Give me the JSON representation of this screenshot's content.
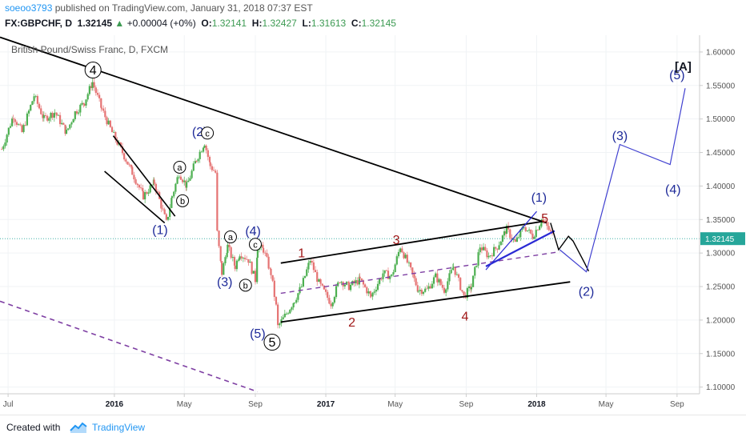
{
  "header": {
    "author": "soeoo3793",
    "published_text": " published on TradingView.com, January 31, 2018 07:37 EST",
    "symbol_line": "FX:GBPCHF, D",
    "last_price": "1.32145",
    "change": "+0.00004 (+0%)",
    "o_label": "O:",
    "o_val": "1.32141",
    "h_label": "H:",
    "h_val": "1.32427",
    "l_label": "L:",
    "l_val": "1.31613",
    "c_label": "C:",
    "c_val": "1.32145"
  },
  "footer": {
    "created_with": "Created with",
    "brand": "TradingView"
  },
  "chart_data": {
    "type": "candlestick",
    "title": "British Pound/Swiss Franc, D, FXCM",
    "annotation_title": "[A]",
    "last_price_label": "1.32145",
    "last_price": 1.32145,
    "ylim": [
      1.09,
      1.625
    ],
    "y_ticks": [
      {
        "value": 1.6,
        "label": "1.60000"
      },
      {
        "value": 1.55,
        "label": "1.55000"
      },
      {
        "value": 1.5,
        "label": "1.50000"
      },
      {
        "value": 1.45,
        "label": "1.45000"
      },
      {
        "value": 1.4,
        "label": "1.40000"
      },
      {
        "value": 1.35,
        "label": "1.35000"
      },
      {
        "value": 1.3,
        "label": "1.30000"
      },
      {
        "value": 1.25,
        "label": "1.25000"
      },
      {
        "value": 1.2,
        "label": "1.20000"
      },
      {
        "value": 1.15,
        "label": "1.15000"
      },
      {
        "value": 1.1,
        "label": "1.10000"
      }
    ],
    "x_range": [
      "2015-06-17",
      "2018-10-10"
    ],
    "x_ticks": [
      {
        "date": "2015-07-01",
        "label": "Jul",
        "bold": false
      },
      {
        "date": "2016-01-01",
        "label": "2016",
        "bold": true
      },
      {
        "date": "2016-05-01",
        "label": "May",
        "bold": false
      },
      {
        "date": "2016-09-01",
        "label": "Sep",
        "bold": false
      },
      {
        "date": "2017-01-01",
        "label": "2017",
        "bold": true
      },
      {
        "date": "2017-05-01",
        "label": "May",
        "bold": false
      },
      {
        "date": "2017-09-01",
        "label": "Sep",
        "bold": false
      },
      {
        "date": "2018-01-01",
        "label": "2018",
        "bold": true
      },
      {
        "date": "2018-05-01",
        "label": "May",
        "bold": false
      },
      {
        "date": "2018-09-01",
        "label": "Sep",
        "bold": false
      }
    ],
    "price_path": [
      [
        "2015-06-20",
        1.455
      ],
      [
        "2015-07-10",
        1.505
      ],
      [
        "2015-07-25",
        1.48
      ],
      [
        "2015-08-15",
        1.535
      ],
      [
        "2015-09-01",
        1.5
      ],
      [
        "2015-09-20",
        1.51
      ],
      [
        "2015-10-10",
        1.48
      ],
      [
        "2015-10-25",
        1.51
      ],
      [
        "2015-11-10",
        1.525
      ],
      [
        "2015-11-24",
        1.555
      ],
      [
        "2015-12-10",
        1.515
      ],
      [
        "2015-12-28",
        1.48
      ],
      [
        "2016-01-15",
        1.45
      ],
      [
        "2016-02-01",
        1.42
      ],
      [
        "2016-02-20",
        1.385
      ],
      [
        "2016-03-10",
        1.405
      ],
      [
        "2016-03-31",
        1.345
      ],
      [
        "2016-04-10",
        1.385
      ],
      [
        "2016-04-22",
        1.42
      ],
      [
        "2016-05-05",
        1.4
      ],
      [
        "2016-05-22",
        1.44
      ],
      [
        "2016-06-05",
        1.465
      ],
      [
        "2016-06-15",
        1.43
      ],
      [
        "2016-06-24",
        1.42
      ],
      [
        "2016-06-27",
        1.33
      ],
      [
        "2016-07-05",
        1.27
      ],
      [
        "2016-07-15",
        1.31
      ],
      [
        "2016-07-28",
        1.28
      ],
      [
        "2016-08-05",
        1.3
      ],
      [
        "2016-08-20",
        1.29
      ],
      [
        "2016-09-01",
        1.26
      ],
      [
        "2016-09-05",
        1.31
      ],
      [
        "2016-09-15",
        1.305
      ],
      [
        "2016-09-28",
        1.27
      ],
      [
        "2016-10-07",
        1.22
      ],
      [
        "2016-10-10",
        1.19
      ],
      [
        "2016-10-25",
        1.21
      ],
      [
        "2016-11-08",
        1.23
      ],
      [
        "2016-11-20",
        1.25
      ],
      [
        "2016-12-05",
        1.29
      ],
      [
        "2016-12-20",
        1.255
      ],
      [
        "2017-01-10",
        1.225
      ],
      [
        "2017-01-25",
        1.26
      ],
      [
        "2017-02-10",
        1.25
      ],
      [
        "2017-03-01",
        1.26
      ],
      [
        "2017-03-20",
        1.235
      ],
      [
        "2017-04-10",
        1.27
      ],
      [
        "2017-04-25",
        1.265
      ],
      [
        "2017-05-10",
        1.31
      ],
      [
        "2017-05-25",
        1.28
      ],
      [
        "2017-06-10",
        1.245
      ],
      [
        "2017-06-25",
        1.245
      ],
      [
        "2017-07-10",
        1.265
      ],
      [
        "2017-07-25",
        1.245
      ],
      [
        "2017-08-10",
        1.28
      ],
      [
        "2017-08-28",
        1.235
      ],
      [
        "2017-09-10",
        1.25
      ],
      [
        "2017-09-25",
        1.31
      ],
      [
        "2017-10-10",
        1.295
      ],
      [
        "2017-10-25",
        1.31
      ],
      [
        "2017-11-10",
        1.335
      ],
      [
        "2017-11-25",
        1.315
      ],
      [
        "2017-12-10",
        1.34
      ],
      [
        "2017-12-25",
        1.325
      ],
      [
        "2018-01-10",
        1.35
      ],
      [
        "2018-01-22",
        1.335
      ],
      [
        "2018-01-31",
        1.32145
      ]
    ],
    "lines": [
      {
        "name": "long-term-trendline",
        "color": "#000000",
        "width": 1.8,
        "dash": false,
        "points": [
          [
            "2015-06-17",
            1.622
          ],
          [
            "2018-01-18",
            1.345
          ]
        ]
      },
      {
        "name": "wave-1-channel-upper",
        "color": "#000000",
        "width": 1.6,
        "dash": false,
        "points": [
          [
            "2015-12-30",
            1.475
          ],
          [
            "2016-04-15",
            1.355
          ]
        ]
      },
      {
        "name": "wave-1-channel-lower",
        "color": "#000000",
        "width": 1.6,
        "dash": false,
        "points": [
          [
            "2015-12-15",
            1.422
          ],
          [
            "2016-03-28",
            1.345
          ]
        ]
      },
      {
        "name": "range-channel-upper",
        "color": "#000000",
        "width": 1.8,
        "dash": false,
        "points": [
          [
            "2016-10-15",
            1.285
          ],
          [
            "2018-01-10",
            1.347
          ]
        ]
      },
      {
        "name": "range-channel-lower",
        "color": "#000000",
        "width": 1.8,
        "dash": false,
        "points": [
          [
            "2016-10-15",
            1.197
          ],
          [
            "2018-02-28",
            1.257
          ]
        ]
      },
      {
        "name": "range-midline",
        "color": "#7e3fa3",
        "width": 1.4,
        "dash": true,
        "points": [
          [
            "2016-10-15",
            1.24
          ],
          [
            "2018-02-10",
            1.302
          ]
        ]
      },
      {
        "name": "lower-purple-trendline",
        "color": "#7e3fa3",
        "width": 1.6,
        "dash": true,
        "points": [
          [
            "2015-06-17",
            1.228
          ],
          [
            "2016-09-05",
            1.093
          ]
        ]
      },
      {
        "name": "ending-diagonal-lower",
        "color": "#2a2ad4",
        "width": 2.2,
        "dash": false,
        "points": [
          [
            "2017-10-05",
            1.28
          ],
          [
            "2018-02-01",
            1.333
          ]
        ]
      },
      {
        "name": "ending-diagonal-upper",
        "color": "#2a2ad4",
        "width": 1.2,
        "dash": false,
        "points": [
          [
            "2017-10-05",
            1.275
          ],
          [
            "2018-01-01",
            1.362
          ]
        ]
      },
      {
        "name": "projection-black",
        "color": "#000000",
        "width": 1.4,
        "dash": false,
        "points": [
          [
            "2018-01-25",
            1.345
          ],
          [
            "2018-02-08",
            1.305
          ],
          [
            "2018-02-25",
            1.325
          ],
          [
            "2018-03-05",
            1.318
          ],
          [
            "2018-03-25",
            1.285
          ],
          [
            "2018-04-01",
            1.273
          ]
        ]
      },
      {
        "name": "projection-blue",
        "color": "#4040d0",
        "width": 1.2,
        "dash": false,
        "points": [
          [
            "2018-02-10",
            1.305
          ],
          [
            "2018-03-28",
            1.272
          ],
          [
            "2018-05-25",
            1.462
          ],
          [
            "2018-08-20",
            1.432
          ],
          [
            "2018-09-15",
            1.546
          ]
        ]
      }
    ],
    "wave_labels": [
      {
        "text": "4",
        "date": "2015-11-25",
        "price": 1.573,
        "color": "#000000",
        "circled": true,
        "size": "big"
      },
      {
        "text": "(2)",
        "date": "2016-05-28",
        "price": 1.481,
        "color": "#1e2a99",
        "circled": false,
        "size": "big"
      },
      {
        "text": "c",
        "date": "2016-06-10",
        "price": 1.479,
        "color": "#000000",
        "circled": true,
        "size": "small"
      },
      {
        "text": "a",
        "date": "2016-04-23",
        "price": 1.428,
        "color": "#000000",
        "circled": true,
        "size": "small"
      },
      {
        "text": "b",
        "date": "2016-04-28",
        "price": 1.378,
        "color": "#000000",
        "circled": true,
        "size": "small"
      },
      {
        "text": "(1)",
        "date": "2016-03-20",
        "price": 1.335,
        "color": "#1e2a99",
        "circled": false,
        "size": "big"
      },
      {
        "text": "a",
        "date": "2016-07-20",
        "price": 1.324,
        "color": "#000000",
        "circled": true,
        "size": "small"
      },
      {
        "text": "(4)",
        "date": "2016-08-28",
        "price": 1.333,
        "color": "#1e2a99",
        "circled": false,
        "size": "big"
      },
      {
        "text": "c",
        "date": "2016-09-01",
        "price": 1.313,
        "color": "#000000",
        "circled": true,
        "size": "small"
      },
      {
        "text": "(3)",
        "date": "2016-07-10",
        "price": 1.257,
        "color": "#1e2a99",
        "circled": false,
        "size": "big"
      },
      {
        "text": "b",
        "date": "2016-08-15",
        "price": 1.252,
        "color": "#000000",
        "circled": true,
        "size": "small"
      },
      {
        "text": "(5)",
        "date": "2016-09-05",
        "price": 1.18,
        "color": "#1e2a99",
        "circled": false,
        "size": "big"
      },
      {
        "text": "5",
        "date": "2016-09-30",
        "price": 1.167,
        "color": "#000000",
        "circled": true,
        "size": "big"
      },
      {
        "text": "1",
        "date": "2016-11-20",
        "price": 1.3,
        "color": "#a01818",
        "circled": false,
        "size": "big"
      },
      {
        "text": "2",
        "date": "2017-02-15",
        "price": 1.197,
        "color": "#a01818",
        "circled": false,
        "size": "big"
      },
      {
        "text": "3",
        "date": "2017-05-03",
        "price": 1.32,
        "color": "#a01818",
        "circled": false,
        "size": "big"
      },
      {
        "text": "4",
        "date": "2017-08-30",
        "price": 1.206,
        "color": "#a01818",
        "circled": false,
        "size": "big"
      },
      {
        "text": "5",
        "date": "2018-01-15",
        "price": 1.352,
        "color": "#a01818",
        "circled": false,
        "size": "big"
      },
      {
        "text": "(1)",
        "date": "2018-01-05",
        "price": 1.383,
        "color": "#1e2a99",
        "circled": false,
        "size": "big"
      },
      {
        "text": "(2)",
        "date": "2018-03-28",
        "price": 1.243,
        "color": "#1e2a99",
        "circled": false,
        "size": "big"
      },
      {
        "text": "(3)",
        "date": "2018-05-25",
        "price": 1.475,
        "color": "#1e2a99",
        "circled": false,
        "size": "big"
      },
      {
        "text": "(4)",
        "date": "2018-08-25",
        "price": 1.395,
        "color": "#1e2a99",
        "circled": false,
        "size": "big"
      },
      {
        "text": "(5)",
        "date": "2018-09-01",
        "price": 1.566,
        "color": "#1e2a99",
        "circled": false,
        "size": "big"
      }
    ],
    "colors": {
      "up": "#4caf50",
      "down": "#e57373",
      "wick": "#8f8f8f",
      "price_line": "#26a69a",
      "price_tag": "#26a69a",
      "grid": "#f0f3f5",
      "axis": "#cccccc"
    },
    "grid": true
  }
}
